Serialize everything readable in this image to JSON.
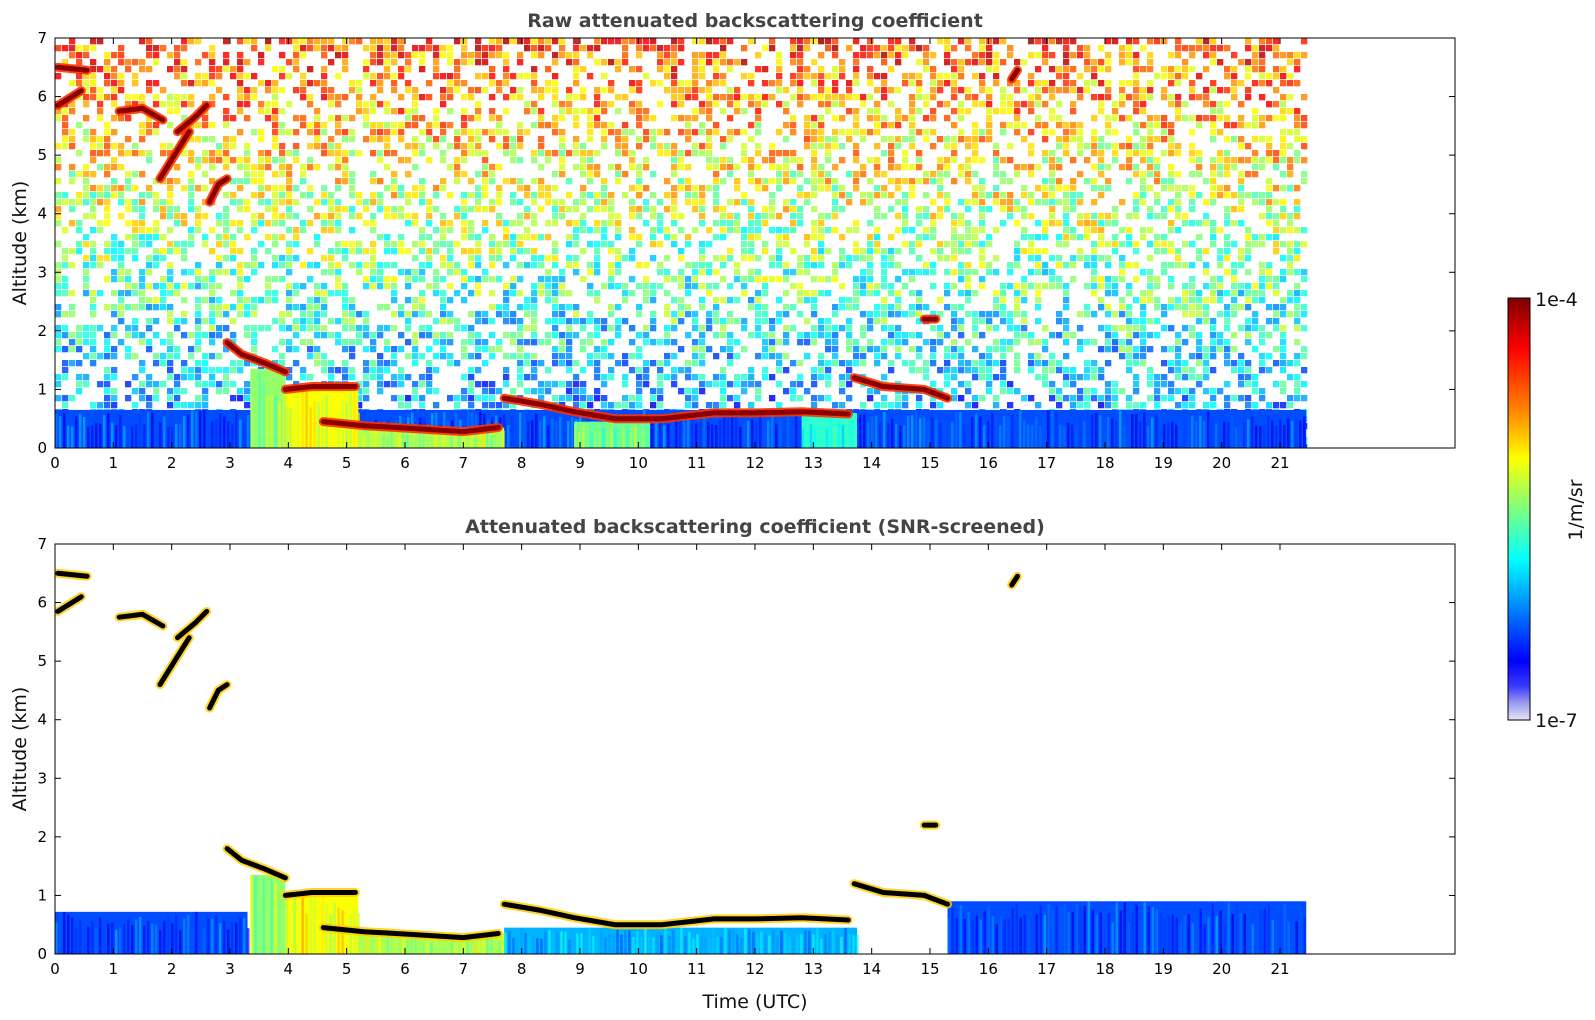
{
  "chart_data": [
    {
      "type": "heatmap",
      "title": "Raw attenuated backscattering coefficient",
      "xlabel": "",
      "ylabel": "Altitude (km)",
      "xlim": [
        0,
        24
      ],
      "ylim": [
        0,
        7
      ],
      "xticks": [
        "0",
        "1",
        "2",
        "3",
        "4",
        "5",
        "6",
        "7",
        "8",
        "9",
        "10",
        "11",
        "12",
        "13",
        "14",
        "15",
        "16",
        "17",
        "18",
        "19",
        "20",
        "21"
      ],
      "yticks": [
        "0",
        "1",
        "2",
        "3",
        "4",
        "5",
        "6",
        "7"
      ],
      "data_end_time": 21.45,
      "color_scale": "log",
      "vmin": "1e-7",
      "vmax": "1e-4",
      "layers": [
        {
          "name": "boundary layer (high)",
          "x_start": 0,
          "x_end": 21.45,
          "base_km": 0,
          "top_km": 0.65,
          "level": 0.2
        },
        {
          "name": "aerosol plume",
          "x_start": 3.35,
          "x_end": 3.95,
          "base_km": 0,
          "top_km": 1.35,
          "level": 0.52
        },
        {
          "name": "aerosol plume",
          "x_start": 3.95,
          "x_end": 5.2,
          "base_km": 0,
          "top_km": 1.05,
          "level": 0.62
        },
        {
          "name": "aerosol plume",
          "x_start": 5.2,
          "x_end": 7.7,
          "base_km": 0,
          "top_km": 0.35,
          "level": 0.55
        },
        {
          "name": "aerosol plume",
          "x_start": 8.9,
          "x_end": 10.2,
          "base_km": 0,
          "top_km": 0.45,
          "level": 0.48
        },
        {
          "name": "aerosol plume",
          "x_start": 12.8,
          "x_end": 13.75,
          "base_km": 0,
          "top_km": 0.6,
          "level": 0.42
        }
      ],
      "cloud_traces": [
        {
          "name": "low cloud",
          "points": [
            [
              2.95,
              1.8
            ],
            [
              3.2,
              1.6
            ],
            [
              3.6,
              1.45
            ],
            [
              3.95,
              1.3
            ]
          ]
        },
        {
          "name": "low cloud",
          "points": [
            [
              3.95,
              1.0
            ],
            [
              4.4,
              1.05
            ],
            [
              5.15,
              1.05
            ]
          ]
        },
        {
          "name": "low cloud",
          "points": [
            [
              4.6,
              0.45
            ],
            [
              5.3,
              0.38
            ],
            [
              6.2,
              0.33
            ],
            [
              7.0,
              0.28
            ],
            [
              7.6,
              0.35
            ]
          ]
        },
        {
          "name": "low cloud",
          "points": [
            [
              7.7,
              0.85
            ],
            [
              8.3,
              0.75
            ],
            [
              8.9,
              0.62
            ],
            [
              9.6,
              0.5
            ],
            [
              10.4,
              0.5
            ],
            [
              11.3,
              0.6
            ],
            [
              12.0,
              0.6
            ],
            [
              12.8,
              0.62
            ],
            [
              13.6,
              0.58
            ]
          ]
        },
        {
          "name": "cirrus",
          "points": [
            [
              1.1,
              5.75
            ],
            [
              1.5,
              5.8
            ],
            [
              1.85,
              5.6
            ]
          ]
        },
        {
          "name": "cirrus",
          "points": [
            [
              2.1,
              5.4
            ],
            [
              2.4,
              5.65
            ],
            [
              2.6,
              5.85
            ]
          ]
        },
        {
          "name": "cirrus",
          "points": [
            [
              1.8,
              4.6
            ],
            [
              2.05,
              5.0
            ],
            [
              2.3,
              5.4
            ]
          ]
        },
        {
          "name": "cirrus",
          "points": [
            [
              2.65,
              4.2
            ],
            [
              2.8,
              4.5
            ],
            [
              2.95,
              4.6
            ]
          ]
        },
        {
          "name": "cirrus",
          "points": [
            [
              0.05,
              6.5
            ],
            [
              0.55,
              6.45
            ]
          ]
        },
        {
          "name": "cirrus",
          "points": [
            [
              0.05,
              5.85
            ],
            [
              0.45,
              6.1
            ]
          ]
        },
        {
          "name": "mid cloud",
          "points": [
            [
              13.7,
              1.2
            ],
            [
              14.2,
              1.05
            ],
            [
              14.9,
              1.0
            ],
            [
              15.3,
              0.85
            ]
          ]
        },
        {
          "name": "patch",
          "points": [
            [
              16.4,
              6.3
            ],
            [
              16.5,
              6.45
            ]
          ]
        },
        {
          "name": "patch",
          "points": [
            [
              14.9,
              2.2
            ],
            [
              15.1,
              2.2
            ]
          ]
        }
      ]
    },
    {
      "type": "heatmap",
      "title": "Attenuated backscattering coefficient (SNR-screened)",
      "xlabel": "Time (UTC)",
      "ylabel": "Altitude (km)",
      "xlim": [
        0,
        24
      ],
      "ylim": [
        0,
        7
      ],
      "xticks": [
        "0",
        "1",
        "2",
        "3",
        "4",
        "5",
        "6",
        "7",
        "8",
        "9",
        "10",
        "11",
        "12",
        "13",
        "14",
        "15",
        "16",
        "17",
        "18",
        "19",
        "20",
        "21"
      ],
      "yticks": [
        "0",
        "1",
        "2",
        "3",
        "4",
        "5",
        "6",
        "7"
      ],
      "data_end_time": 21.45,
      "color_scale": "log",
      "vmin": "1e-7",
      "vmax": "1e-4",
      "layers": [
        {
          "name": "boundary layer (high)",
          "x_start": 0,
          "x_end": 3.3,
          "base_km": 0,
          "top_km": 0.72,
          "level": 0.2
        },
        {
          "name": "boundary layer (high)",
          "x_start": 15.3,
          "x_end": 21.45,
          "base_km": 0,
          "top_km": 0.9,
          "level": 0.2
        },
        {
          "name": "aerosol plume",
          "x_start": 3.35,
          "x_end": 3.95,
          "base_km": 0,
          "top_km": 1.35,
          "level": 0.52
        },
        {
          "name": "aerosol plume",
          "x_start": 3.95,
          "x_end": 5.2,
          "base_km": 0,
          "top_km": 1.05,
          "level": 0.62
        },
        {
          "name": "aerosol plume",
          "x_start": 5.2,
          "x_end": 7.7,
          "base_km": 0,
          "top_km": 0.35,
          "level": 0.55
        },
        {
          "name": "aerosol plume",
          "x_start": 7.7,
          "x_end": 13.75,
          "base_km": 0,
          "top_km": 0.45,
          "level": 0.3
        }
      ]
    }
  ],
  "colorbar": {
    "label": "1/m/sr",
    "max_label": "1e-4",
    "min_label": "1e-7",
    "colormap": "jet",
    "colors": [
      "#7f0000",
      "#ff0000",
      "#ff7f00",
      "#ffff00",
      "#7fff7f",
      "#00ffff",
      "#007fff",
      "#0000ff",
      "#00007f"
    ],
    "low_end_colors": [
      "#e6e6f5",
      "#9a9af0"
    ]
  }
}
